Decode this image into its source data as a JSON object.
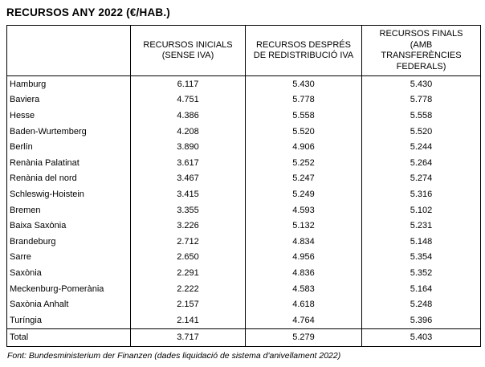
{
  "page": {
    "title": "RECURSOS ANY 2022 (€/HAB.)",
    "source_note": "Font: Bundesministerium der Finanzen (dades liquidació de sistema d'anivellament 2022)"
  },
  "display": {
    "headers": [
      "",
      "RECURSOS INICIALS\n(SENSE IVA)",
      "RECURSOS DESPRÉS\nDE REDISTRIBUCIÓ IVA",
      "RECURSOS FINALS\n(AMB\nTRANSFERÈNCIES\nFEDERALS)"
    ]
  },
  "chart_data": {
    "type": "table",
    "title": "RECURSOS ANY 2022 (€/HAB.)",
    "unit": "€/hab.",
    "columns": [
      "",
      "RECURSOS INICIALS (SENSE IVA)",
      "RECURSOS DESPRÉS DE REDISTRIBUCIÓ IVA",
      "RECURSOS FINALS (AMB TRANSFERÈNCIES FEDERALS)"
    ],
    "rows": [
      {
        "label": "Hamburg",
        "values": [
          "6.117",
          "5.430",
          "5.430"
        ]
      },
      {
        "label": "Baviera",
        "values": [
          "4.751",
          "5.778",
          "5.778"
        ]
      },
      {
        "label": "Hesse",
        "values": [
          "4.386",
          "5.558",
          "5.558"
        ]
      },
      {
        "label": "Baden-Wurtemberg",
        "values": [
          "4.208",
          "5.520",
          "5.520"
        ]
      },
      {
        "label": "Berlín",
        "values": [
          "3.890",
          "4.906",
          "5.244"
        ]
      },
      {
        "label": "Renània Palatinat",
        "values": [
          "3.617",
          "5.252",
          "5.264"
        ]
      },
      {
        "label": "Renània del nord",
        "values": [
          "3.467",
          "5.247",
          "5.274"
        ]
      },
      {
        "label": "Schleswig-Hoistein",
        "values": [
          "3.415",
          "5.249",
          "5.316"
        ]
      },
      {
        "label": "Bremen",
        "values": [
          "3.355",
          "4.593",
          "5.102"
        ]
      },
      {
        "label": "Baixa Saxònia",
        "values": [
          "3.226",
          "5.132",
          "5.231"
        ]
      },
      {
        "label": "Brandeburg",
        "values": [
          "2.712",
          "4.834",
          "5.148"
        ]
      },
      {
        "label": "Sarre",
        "values": [
          "2.650",
          "4.956",
          "5.354"
        ]
      },
      {
        "label": "Saxònia",
        "values": [
          "2.291",
          "4.836",
          "5.352"
        ]
      },
      {
        "label": "Meckenburg-Pomerània",
        "values": [
          "2.222",
          "4.583",
          "5.164"
        ]
      },
      {
        "label": "Saxònia Anhalt",
        "values": [
          "2.157",
          "4.618",
          "5.248"
        ]
      },
      {
        "label": "Turíngia",
        "values": [
          "2.141",
          "4.764",
          "5.396"
        ]
      }
    ],
    "total": {
      "label": "Total",
      "values": [
        "3.717",
        "5.279",
        "5.403"
      ]
    },
    "source": "Font: Bundesministerium der Finanzen (dades liquidació de sistema d'anivellament 2022)"
  },
  "colors": {
    "background": "#ffffff",
    "border": "#000000",
    "text": "#000000"
  }
}
